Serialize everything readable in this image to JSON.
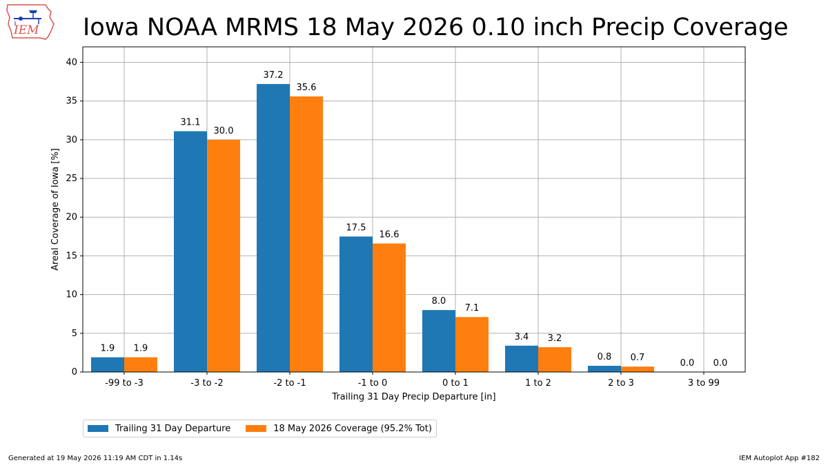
{
  "title": "Iowa NOAA MRMS 18 May 2026 0.10 inch Precip Coverage",
  "logo": {
    "text": "IEM"
  },
  "colors": {
    "series1": "#1f77b4",
    "series2": "#ff7f0e",
    "grid": "#b0b0b0"
  },
  "chart_data": {
    "type": "bar",
    "categories": [
      "-99 to -3",
      "-3 to -2",
      "-2 to -1",
      "-1 to 0",
      "0 to 1",
      "1 to 2",
      "2 to 3",
      "3 to 99"
    ],
    "series": [
      {
        "name": "Trailing 31 Day Departure",
        "values": [
          1.9,
          31.1,
          37.2,
          17.5,
          8.0,
          3.4,
          0.8,
          0.0
        ]
      },
      {
        "name": "18 May 2026 Coverage (95.2% Tot)",
        "values": [
          1.9,
          30.0,
          35.6,
          16.6,
          7.1,
          3.2,
          0.7,
          0.0
        ]
      }
    ],
    "xlabel": "Trailing 31 Day Precip Departure [in]",
    "ylabel": "Areal Coverage of Iowa [%]",
    "ylim": [
      0,
      42
    ],
    "yticks": [
      0,
      5,
      10,
      15,
      20,
      25,
      30,
      35,
      40
    ],
    "grid": true,
    "legend_position": "bottom-left"
  },
  "footer": {
    "left": "Generated at 19 May 2026 11:19 AM CDT in 1.14s",
    "right": "IEM Autoplot App #182"
  }
}
